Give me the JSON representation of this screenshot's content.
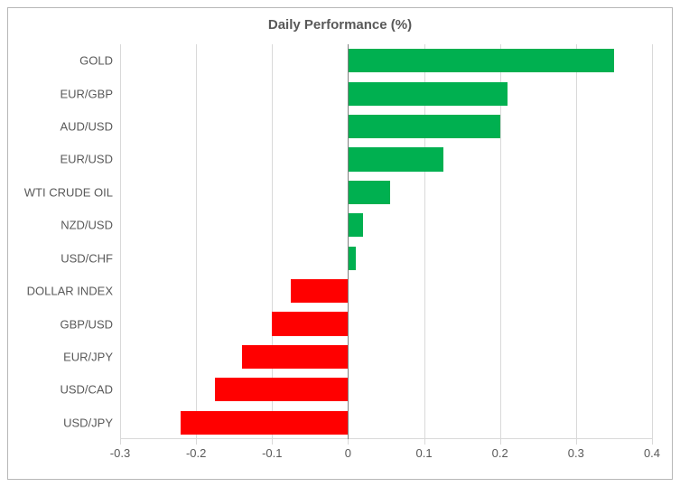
{
  "chart": {
    "type": "bar-horizontal",
    "title": "Daily Performance (%)",
    "title_fontsize": 15,
    "title_color": "#595959",
    "background_color": "#ffffff",
    "border_color": "#b7b7b7",
    "grid_color": "#d9d9d9",
    "zero_axis_color": "#808080",
    "label_color": "#595959",
    "label_fontsize": 13,
    "xlim": [
      -0.3,
      0.4
    ],
    "xtick_step": 0.1,
    "xticks": [
      -0.3,
      -0.2,
      -0.1,
      0,
      0.1,
      0.2,
      0.3,
      0.4
    ],
    "xtick_labels": [
      "-0.3",
      "-0.2",
      "-0.1",
      "0",
      "0.1",
      "0.2",
      "0.3",
      "0.4"
    ],
    "categories": [
      "GOLD",
      "EUR/GBP",
      "AUD/USD",
      "EUR/USD",
      "WTI CRUDE OIL",
      "NZD/USD",
      "USD/CHF",
      "DOLLAR INDEX",
      "GBP/USD",
      "EUR/JPY",
      "USD/CAD",
      "USD/JPY"
    ],
    "values": [
      0.35,
      0.21,
      0.2,
      0.125,
      0.055,
      0.02,
      0.01,
      -0.075,
      -0.1,
      -0.14,
      -0.175,
      -0.22
    ],
    "positive_color": "#00b050",
    "negative_color": "#ff0000",
    "bar_gap_ratio": 0.28
  }
}
